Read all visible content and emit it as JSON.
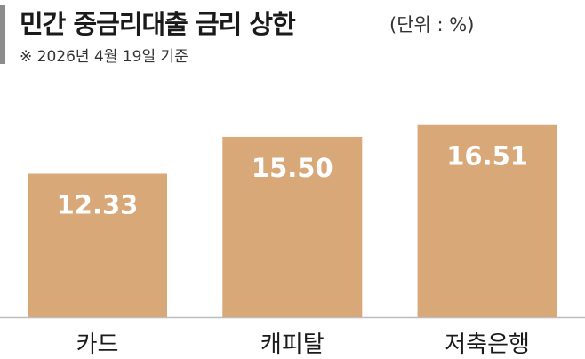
{
  "header": {
    "title": "민간 중금리대출 금리 상한",
    "unit": "(단위 : %)",
    "note": "※ 2026년 4월 19일 기준"
  },
  "colors": {
    "bar": "#D8A878",
    "baseline": "#BDBDBD",
    "accent": "#8C8C8C"
  },
  "chart_data": {
    "type": "bar",
    "title": "민간 중금리대출 금리 상한",
    "unit": "%",
    "categories": [
      "카드",
      "캐피탈",
      "저축은행"
    ],
    "values": [
      12.33,
      15.5,
      16.51
    ],
    "data_labels": [
      "12.33",
      "15.50",
      "16.51"
    ],
    "xlabel": "",
    "ylabel": "",
    "grid": false,
    "legend": "none"
  }
}
